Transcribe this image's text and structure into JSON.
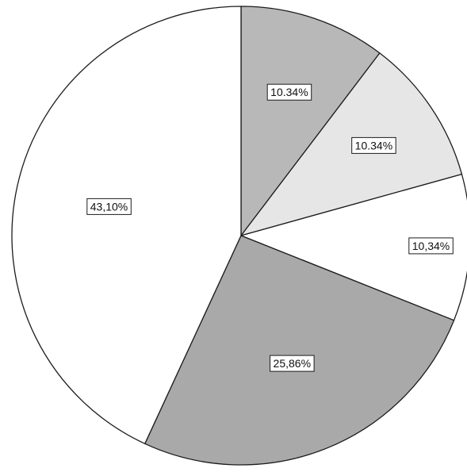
{
  "chart_data": {
    "type": "pie",
    "title": "",
    "start": "top",
    "direction": "clockwise",
    "legend": "none",
    "slices": [
      {
        "label": "10.34%",
        "value": 10.34,
        "color": "#b8b8b8"
      },
      {
        "label": "10.34%",
        "value": 10.34,
        "color": "#e6e6e6"
      },
      {
        "label": "10,34%",
        "value": 10.34,
        "color": "#ffffff"
      },
      {
        "label": "25,86%",
        "value": 25.86,
        "color": "#a9a9a9"
      },
      {
        "label": "43,10%",
        "value": 43.1,
        "color": "#ffffff"
      }
    ]
  }
}
